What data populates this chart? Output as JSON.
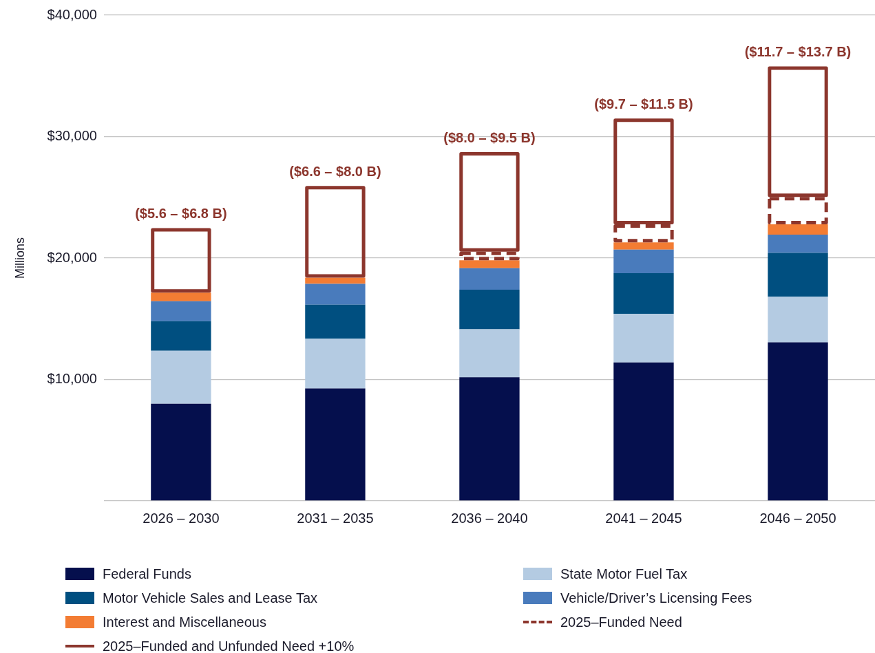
{
  "chart_data": {
    "type": "bar",
    "stacked": true,
    "ylabel": "Millions",
    "categories": [
      "2026 – 2030",
      "2031 – 2035",
      "2036 – 2040",
      "2041 – 2045",
      "2046 – 2050"
    ],
    "series": [
      {
        "name": "Federal Funds",
        "color": "#050f4d",
        "values": [
          8000,
          9270,
          10180,
          11400,
          13060
        ]
      },
      {
        "name": "State Motor Fuel Tax",
        "color": "#b4cbe2",
        "values": [
          4370,
          4100,
          3960,
          3990,
          3750
        ]
      },
      {
        "name": "Motor Vehicle Sales and Lease Tax",
        "color": "#004f80",
        "values": [
          2430,
          2790,
          3260,
          3370,
          3620
        ]
      },
      {
        "name": "Vehicle/Driver’s Licensing Fees",
        "color": "#497bbc",
        "values": [
          1650,
          1710,
          1770,
          1940,
          1500
        ]
      },
      {
        "name": "Interest and Miscellaneous",
        "color": "#f37c33",
        "values": [
          710,
          510,
          650,
          590,
          850
        ]
      },
      {
        "name": "2025–Funded Need",
        "color": "#8c362d",
        "line_style": "dashed",
        "values": [
          0,
          0,
          710,
          1490,
          2250
        ]
      },
      {
        "name": "2025–Funded and Unfunded Need +10%",
        "color": "#8c362d",
        "line_style": "solid",
        "values": [
          5300,
          7560,
          8190,
          8710,
          10750
        ]
      }
    ],
    "ylim": [
      0,
      40000
    ],
    "yticks": [
      {
        "value": 0,
        "label": null
      },
      {
        "value": 10000,
        "label": "$10,000"
      },
      {
        "value": 20000,
        "label": "$20,000"
      },
      {
        "value": 30000,
        "label": "$30,000"
      },
      {
        "value": 40000,
        "label": "$40,000"
      }
    ],
    "grid": "y",
    "legend": "bottom",
    "annotations": [
      {
        "text": "($5.6 – $6.8 B)",
        "x": "2026 – 2030",
        "y": 22460
      },
      {
        "text": "($6.6 – $8.0 B)",
        "x": "2031 – 2035",
        "y": 25940
      },
      {
        "text": "($8.0 – $9.5 B)",
        "x": "2036 – 2040",
        "y": 28720
      },
      {
        "text": "($9.7 – $11.5 B)",
        "x": "2041 – 2045",
        "y": 31490
      },
      {
        "text": "($11.7 – $13.7 B)",
        "x": "2046 – 2050",
        "y": 35780
      }
    ]
  }
}
